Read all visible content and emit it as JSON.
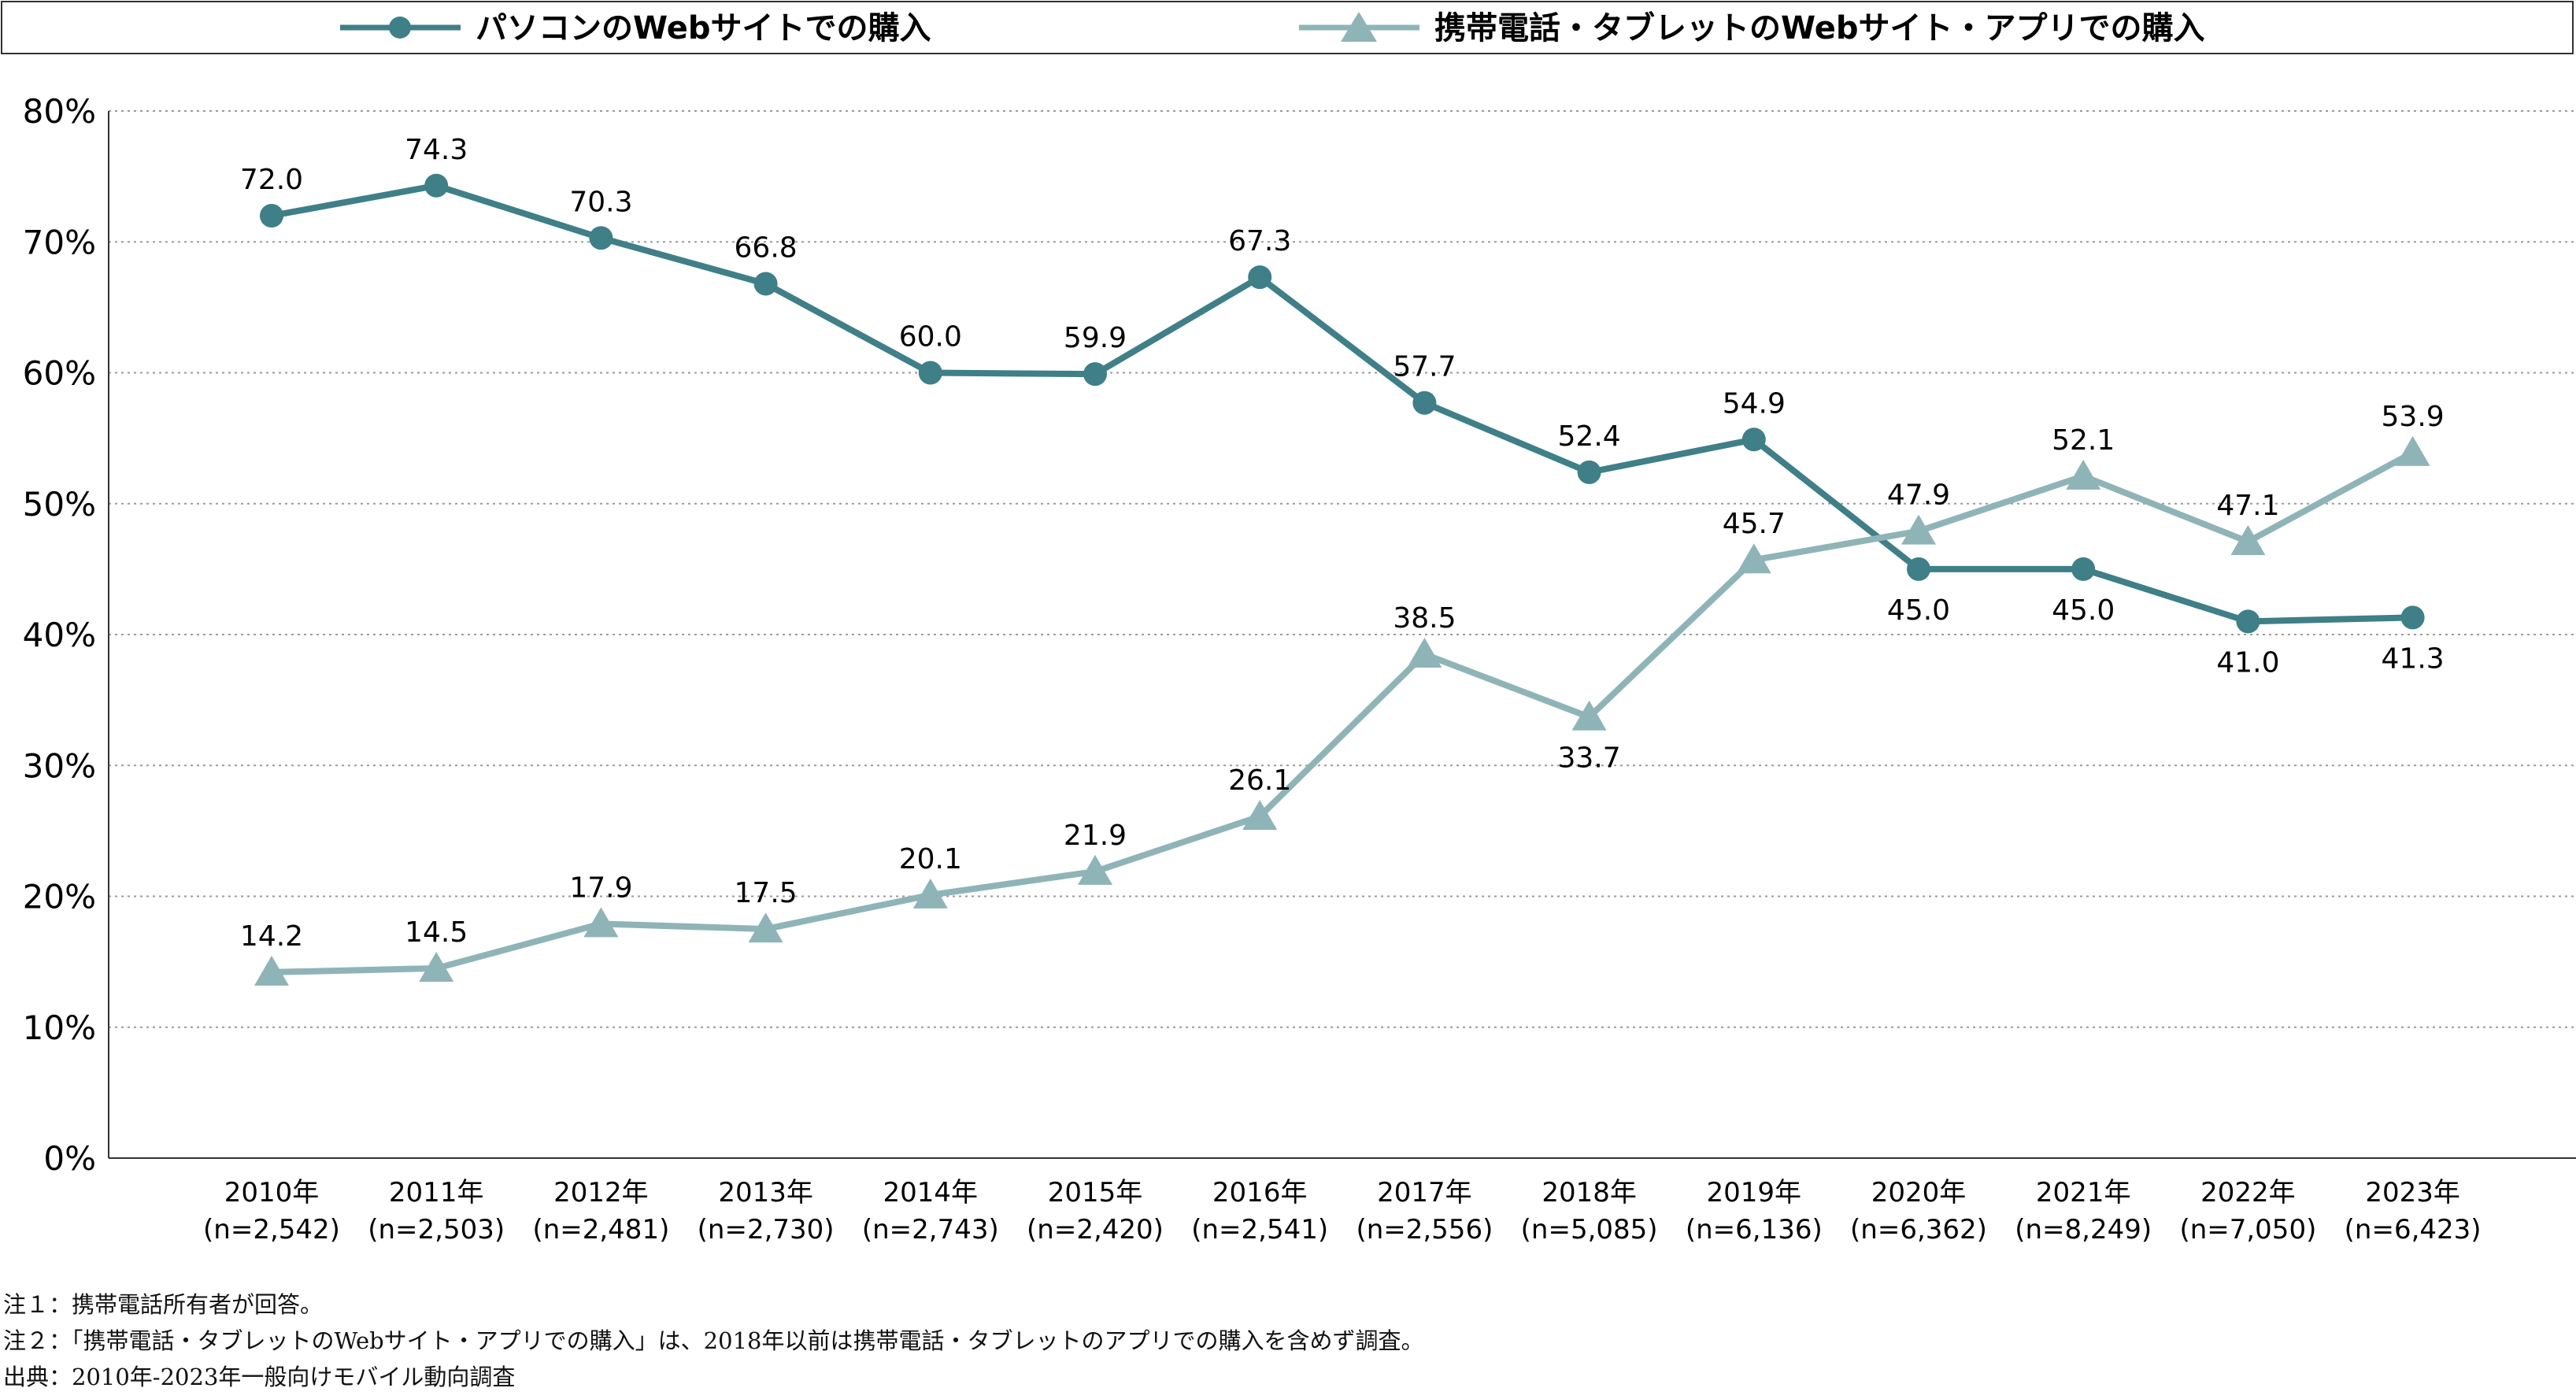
{
  "chart_data": {
    "type": "line",
    "categories": [
      "2010年",
      "2011年",
      "2012年",
      "2013年",
      "2014年",
      "2015年",
      "2016年",
      "2017年",
      "2018年",
      "2019年",
      "2020年",
      "2021年",
      "2022年",
      "2023年"
    ],
    "category_sublabels": [
      "(n=2,542)",
      "(n=2,503)",
      "(n=2,481)",
      "(n=2,730)",
      "(n=2,743)",
      "(n=2,420)",
      "(n=2,541)",
      "(n=2,556)",
      "(n=5,085)",
      "(n=6,136)",
      "(n=6,362)",
      "(n=8,249)",
      "(n=7,050)",
      "(n=6,423)"
    ],
    "series": [
      {
        "name": "パソコンのWebサイトでの購入",
        "marker": "circle",
        "color": "#3f7f88",
        "values": [
          72.0,
          74.3,
          70.3,
          66.8,
          60.0,
          59.9,
          67.3,
          57.7,
          52.4,
          54.9,
          45.0,
          45.0,
          41.0,
          41.3
        ],
        "labels": [
          "72.0",
          "74.3",
          "70.3",
          "66.8",
          "60.0",
          "59.9",
          "67.3",
          "57.7",
          "52.4",
          "54.9",
          "45.0",
          "45.0",
          "41.0",
          "41.3"
        ],
        "label_position": [
          "above",
          "above",
          "above",
          "above",
          "above",
          "above",
          "above",
          "above",
          "above",
          "above",
          "below",
          "below",
          "below",
          "below"
        ]
      },
      {
        "name": "携帯電話・タブレットのWebサイト・アプリでの購入",
        "marker": "triangle",
        "color": "#8fb4b8",
        "values": [
          14.2,
          14.5,
          17.9,
          17.5,
          20.1,
          21.9,
          26.1,
          38.5,
          33.7,
          45.7,
          47.9,
          52.1,
          47.1,
          53.9
        ],
        "labels": [
          "14.2",
          "14.5",
          "17.9",
          "17.5",
          "20.1",
          "21.9",
          "26.1",
          "38.5",
          "33.7",
          "45.7",
          "47.9",
          "52.1",
          "47.1",
          "53.9"
        ],
        "label_position": [
          "above",
          "above",
          "above",
          "above",
          "above",
          "above",
          "above",
          "above",
          "below",
          "above",
          "above",
          "above",
          "above",
          "above"
        ]
      }
    ],
    "ylim": [
      0,
      80
    ],
    "yticks": [
      0,
      10,
      20,
      30,
      40,
      50,
      60,
      70,
      80
    ],
    "ytick_labels": [
      "0%",
      "10%",
      "20%",
      "30%",
      "40%",
      "50%",
      "60%",
      "70%",
      "80%"
    ],
    "grid": "horizontal dotted",
    "legend": "top"
  },
  "notes": [
    "注１：携帯電話所有者が回答。",
    "注２：「携帯電話・タブレットのWebサイト・アプリでの購入」は、2018年以前は携帯電話・タブレットのアプリでの購入を含めず調査。",
    "出典：2010年-2023年一般向けモバイル動向調査"
  ]
}
